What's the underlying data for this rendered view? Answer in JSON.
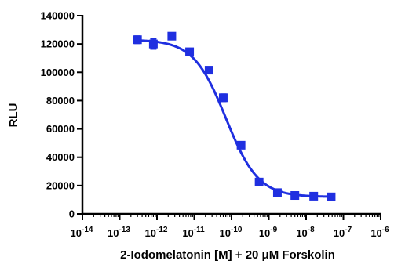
{
  "chart_data": {
    "type": "scatter",
    "title": "",
    "xlabel": "2-Iodomelatonin [M] + 20 μM Forskolin",
    "ylabel": "RLU",
    "xscale": "log",
    "xlim": [
      1e-14,
      1e-06
    ],
    "ylim": [
      0,
      140000
    ],
    "x_tick_labels": [
      {
        "base": "10",
        "exp": "-14"
      },
      {
        "base": "10",
        "exp": "-13"
      },
      {
        "base": "10",
        "exp": "-12"
      },
      {
        "base": "10",
        "exp": "-11"
      },
      {
        "base": "10",
        "exp": "-10"
      },
      {
        "base": "10",
        "exp": "-9"
      },
      {
        "base": "10",
        "exp": "-8"
      },
      {
        "base": "10",
        "exp": "-7"
      },
      {
        "base": "10",
        "exp": "-6"
      }
    ],
    "y_tick_labels": [
      "0",
      "20000",
      "40000",
      "60000",
      "80000",
      "100000",
      "120000",
      "140000"
    ],
    "color": "#1f2fe0",
    "marker": "square",
    "series": [
      {
        "x": [
          3e-13,
          8e-13,
          2.5e-12,
          7.5e-12,
          2.5e-11,
          6e-11,
          1.8e-10,
          5.5e-10,
          1.7e-09,
          5e-09,
          1.6e-08,
          4.7e-08
        ],
        "y": [
          123000,
          120000,
          125500,
          114500,
          101500,
          82000,
          48500,
          22500,
          15000,
          13000,
          12500,
          12000
        ],
        "error": [
          2500,
          3500,
          1500,
          1000,
          1000,
          2500,
          1000,
          1000,
          500,
          500,
          500,
          800
        ]
      }
    ],
    "fit": {
      "type": "sigmoidal dose-response",
      "top": 123000,
      "bottom": 12000,
      "log_ec50": -10.15,
      "hill_slope": -1.0
    }
  }
}
